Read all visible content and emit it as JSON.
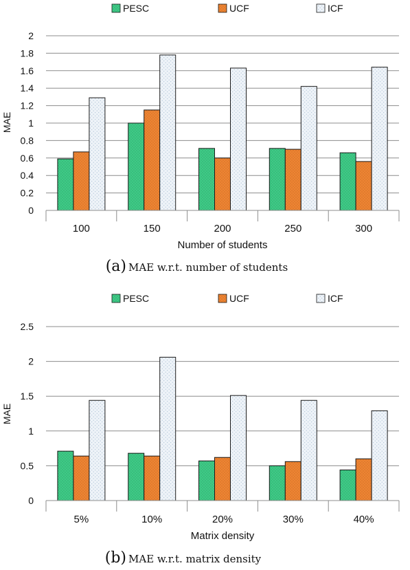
{
  "colors": {
    "pesc_fill": "#3fca86",
    "ucf_fill": "#ee8433",
    "icf_fill": "#eef3f8",
    "outline": "#1a1a1a",
    "grid": "#8c8c8c"
  },
  "chart_data": [
    {
      "type": "bar",
      "caption_prefix": "(a)",
      "caption_text": "MAE w.r.t. number of students",
      "xlabel": "Number of students",
      "ylabel": "MAE",
      "categories": [
        "100",
        "150",
        "200",
        "250",
        "300"
      ],
      "ylim": [
        0,
        2
      ],
      "yticks": [
        "0",
        "0.2",
        "0.4",
        "0.6",
        "0.8",
        "1",
        "1.2",
        "1.4",
        "1.6",
        "1.8",
        "2"
      ],
      "grid": true,
      "legend_position": "top",
      "series": [
        {
          "name": "PESC",
          "values": [
            0.59,
            1.0,
            0.71,
            0.71,
            0.66
          ]
        },
        {
          "name": "UCF",
          "values": [
            0.67,
            1.15,
            0.6,
            0.7,
            0.56
          ]
        },
        {
          "name": "ICF",
          "values": [
            1.29,
            1.78,
            1.63,
            1.42,
            1.64
          ]
        }
      ]
    },
    {
      "type": "bar",
      "caption_prefix": "(b)",
      "caption_text": "MAE w.r.t. matrix density",
      "xlabel": "Matrix density",
      "ylabel": "MAE",
      "categories": [
        "5%",
        "10%",
        "20%",
        "30%",
        "40%"
      ],
      "ylim": [
        0,
        2.5
      ],
      "yticks": [
        "0",
        "0.5",
        "1",
        "1.5",
        "2",
        "2.5"
      ],
      "grid": true,
      "legend_position": "top",
      "series": [
        {
          "name": "PESC",
          "values": [
            0.71,
            0.68,
            0.57,
            0.5,
            0.44
          ]
        },
        {
          "name": "UCF",
          "values": [
            0.64,
            0.64,
            0.62,
            0.56,
            0.6
          ]
        },
        {
          "name": "ICF",
          "values": [
            1.44,
            2.06,
            1.51,
            1.44,
            1.29
          ]
        }
      ]
    }
  ]
}
